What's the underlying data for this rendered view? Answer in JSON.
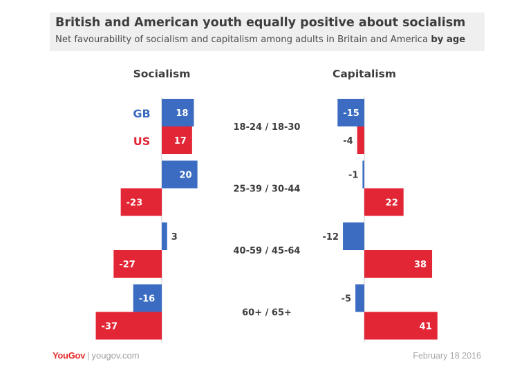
{
  "header": {
    "title": "British and American youth equally positive about socialism",
    "subtitle_main": "Net favourability of socialism and capitalism among adults in Britain and America",
    "subtitle_bold": "by age"
  },
  "legend": {
    "gb": "GB",
    "us": "US"
  },
  "colors": {
    "gb": "#3b6cc2",
    "us": "#e32636",
    "axis": "#cccccc",
    "text": "#3d3d3d"
  },
  "chart_data": {
    "type": "bar",
    "orientation": "horizontal",
    "categories": [
      "18-24 / 18-30",
      "25-39 / 30-44",
      "40-59 / 45-64",
      "60+ / 65+"
    ],
    "panels": [
      {
        "title": "Socialism",
        "series": [
          {
            "name": "GB",
            "values": [
              18,
              20,
              3,
              -16
            ]
          },
          {
            "name": "US",
            "values": [
              17,
              -23,
              -27,
              -37
            ]
          }
        ]
      },
      {
        "title": "Capitalism",
        "series": [
          {
            "name": "GB",
            "values": [
              -15,
              -1,
              -12,
              -5
            ]
          },
          {
            "name": "US",
            "values": [
              -4,
              22,
              38,
              41
            ]
          }
        ]
      }
    ]
  },
  "footer": {
    "brand": "YouGov",
    "site": "yougov.com",
    "date": "February 18 2016"
  }
}
